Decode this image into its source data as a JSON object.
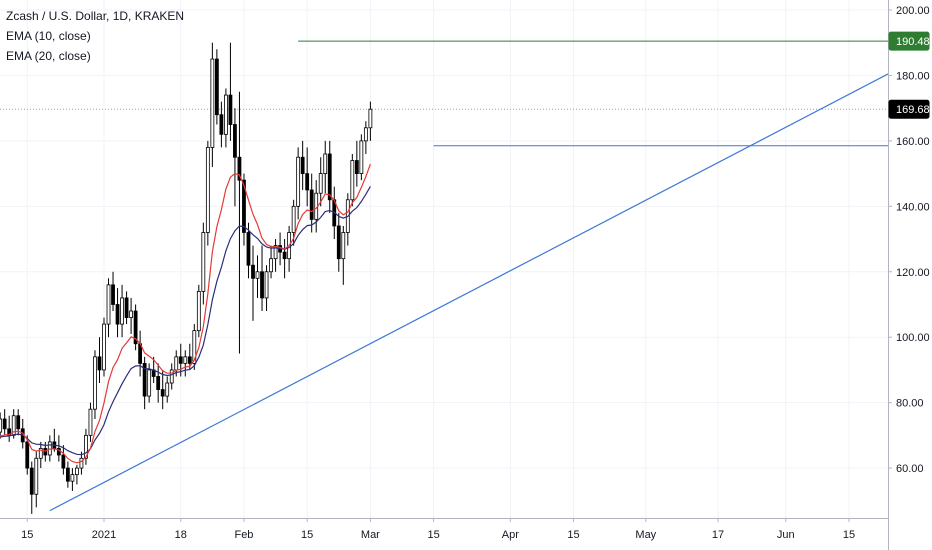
{
  "legend": {
    "title": "Zcash / U.S. Dollar, 1D, KRAKEN",
    "ema10": "EMA (10, close)",
    "ema20": "EMA (20, close)"
  },
  "colors": {
    "up": "#ffffff",
    "down": "#000000",
    "wick": "#000000",
    "ema10": "#e53935",
    "ema20": "#2b2f7a",
    "trendline": "#3c78d8",
    "resistance": "#2e7d32",
    "price_line": "#9e9e9e",
    "grid": "#f0f3fa",
    "axis_text": "#131722"
  },
  "badges": {
    "resistance": {
      "text": "190.48",
      "value": 190.48
    },
    "last_price": {
      "text": "169.68",
      "value": 169.68
    }
  },
  "chart_data": {
    "type": "candlestick",
    "ylim": [
      42,
      205
    ],
    "y_ticks": [
      "200.00",
      "180.00",
      "160.00",
      "140.00",
      "120.00",
      "100.00",
      "80.00",
      "60.00"
    ],
    "y_tick_values": [
      200,
      180,
      160,
      140,
      120,
      100,
      80,
      60
    ],
    "x_ticks": [
      {
        "label": "15",
        "day": -17
      },
      {
        "label": "2021",
        "day": 0
      },
      {
        "label": "18",
        "day": 17
      },
      {
        "label": "Feb",
        "day": 31
      },
      {
        "label": "15",
        "day": 45
      },
      {
        "label": "Mar",
        "day": 59
      },
      {
        "label": "15",
        "day": 73
      },
      {
        "label": "Apr",
        "day": 90
      },
      {
        "label": "15",
        "day": 104
      },
      {
        "label": "May",
        "day": 120
      },
      {
        "label": "17",
        "day": 136
      },
      {
        "label": "Jun",
        "day": 151
      },
      {
        "label": "15",
        "day": 165
      }
    ],
    "candles": [
      [
        69,
        70,
        62,
        64
      ],
      [
        64,
        68,
        61,
        66
      ],
      [
        66,
        70,
        64,
        67
      ],
      [
        67,
        72,
        65,
        70
      ],
      [
        70,
        73,
        66,
        68
      ],
      [
        68,
        71,
        65,
        69
      ],
      [
        69,
        72,
        67,
        71
      ],
      [
        71,
        77,
        69,
        75
      ],
      [
        75,
        78,
        70,
        72
      ],
      [
        72,
        76,
        68,
        70
      ],
      [
        70,
        78,
        69,
        76
      ],
      [
        76,
        78,
        70,
        72
      ],
      [
        72,
        75,
        66,
        68
      ],
      [
        68,
        70,
        58,
        60
      ],
      [
        60,
        62,
        46,
        52
      ],
      [
        52,
        65,
        48,
        63
      ],
      [
        63,
        68,
        60,
        66
      ],
      [
        66,
        68,
        62,
        64
      ],
      [
        64,
        70,
        62,
        68
      ],
      [
        68,
        72,
        65,
        66
      ],
      [
        66,
        70,
        62,
        64
      ],
      [
        64,
        67,
        58,
        60
      ],
      [
        60,
        62,
        54,
        56
      ],
      [
        56,
        60,
        53,
        58
      ],
      [
        58,
        61,
        55,
        60
      ],
      [
        60,
        65,
        58,
        63
      ],
      [
        63,
        72,
        61,
        70
      ],
      [
        70,
        80,
        68,
        78
      ],
      [
        78,
        96,
        75,
        94
      ],
      [
        94,
        100,
        86,
        90
      ],
      [
        90,
        106,
        88,
        104
      ],
      [
        104,
        118,
        100,
        116
      ],
      [
        116,
        120,
        108,
        110
      ],
      [
        110,
        115,
        100,
        104
      ],
      [
        104,
        116,
        100,
        112
      ],
      [
        112,
        114,
        104,
        106
      ],
      [
        106,
        112,
        101,
        108
      ],
      [
        108,
        110,
        96,
        98
      ],
      [
        98,
        102,
        88,
        92
      ],
      [
        92,
        94,
        78,
        82
      ],
      [
        82,
        92,
        80,
        90
      ],
      [
        90,
        94,
        86,
        88
      ],
      [
        88,
        92,
        80,
        84
      ],
      [
        84,
        90,
        78,
        82
      ],
      [
        82,
        88,
        80,
        86
      ],
      [
        86,
        92,
        84,
        90
      ],
      [
        90,
        96,
        88,
        94
      ],
      [
        94,
        98,
        88,
        92
      ],
      [
        92,
        96,
        88,
        94
      ],
      [
        94,
        98,
        90,
        92
      ],
      [
        92,
        104,
        90,
        102
      ],
      [
        102,
        116,
        100,
        114
      ],
      [
        114,
        135,
        110,
        132
      ],
      [
        132,
        160,
        128,
        158
      ],
      [
        158,
        190,
        152,
        185
      ],
      [
        185,
        188,
        165,
        168
      ],
      [
        168,
        172,
        158,
        162
      ],
      [
        162,
        176,
        158,
        174
      ],
      [
        174,
        190,
        160,
        165
      ],
      [
        165,
        170,
        140,
        155
      ],
      [
        155,
        175,
        95,
        148
      ],
      [
        148,
        150,
        128,
        132
      ],
      [
        132,
        135,
        118,
        122
      ],
      [
        122,
        128,
        105,
        118
      ],
      [
        118,
        125,
        112,
        120
      ],
      [
        120,
        128,
        108,
        112
      ],
      [
        112,
        122,
        108,
        120
      ],
      [
        120,
        128,
        118,
        124
      ],
      [
        124,
        130,
        120,
        128
      ],
      [
        128,
        132,
        122,
        126
      ],
      [
        126,
        130,
        118,
        124
      ],
      [
        124,
        134,
        120,
        132
      ],
      [
        132,
        142,
        128,
        140
      ],
      [
        140,
        158,
        136,
        155
      ],
      [
        155,
        160,
        145,
        150
      ],
      [
        150,
        158,
        140,
        145
      ],
      [
        145,
        150,
        132,
        136
      ],
      [
        136,
        148,
        132,
        144
      ],
      [
        144,
        155,
        140,
        150
      ],
      [
        150,
        160,
        144,
        156
      ],
      [
        156,
        160,
        138,
        142
      ],
      [
        142,
        146,
        130,
        134
      ],
      [
        134,
        138,
        120,
        124
      ],
      [
        124,
        134,
        116,
        132
      ],
      [
        132,
        144,
        128,
        142
      ],
      [
        142,
        156,
        140,
        154
      ],
      [
        154,
        160,
        146,
        150
      ],
      [
        150,
        162,
        148,
        160
      ],
      [
        160,
        166,
        156,
        164
      ],
      [
        164,
        172,
        160,
        169.68
      ]
    ],
    "ema10": [
      68,
      67.6,
      67.5,
      67.9,
      67.9,
      68.1,
      68.6,
      69.7,
      70.2,
      70.2,
      71.1,
      71.3,
      70.7,
      68.7,
      65.7,
      65.2,
      65.5,
      65.2,
      65.8,
      65.9,
      65.5,
      64.5,
      62.9,
      62,
      61.6,
      62,
      63.4,
      66.1,
      71.2,
      74.6,
      79.9,
      86.4,
      90.7,
      93.1,
      96.6,
      98.3,
      100.1,
      99.5,
      98.1,
      95.2,
      94.2,
      93.1,
      91.4,
      89.7,
      89,
      89,
      89.9,
      90.2,
      90.9,
      91.1,
      93,
      96.8,
      103.2,
      113.2,
      126.2,
      133.8,
      139.0,
      145.3,
      148.9,
      150,
      149.6,
      146.4,
      141.9,
      137.6,
      134.4,
      130.3,
      128.4,
      127.6,
      127.7,
      127.4,
      127,
      128,
      130.2,
      134.7,
      137.5,
      138.9,
      138.4,
      139.4,
      141.3,
      143.8,
      143.5,
      141.8,
      138.6,
      137.4,
      138.2,
      141.1,
      142.7,
      145.8,
      149.1,
      152.9
    ],
    "ema20": [
      69,
      68.7,
      68.5,
      68.6,
      68.6,
      68.6,
      68.9,
      69.5,
      69.7,
      69.8,
      70.2,
      70.4,
      70.1,
      69.1,
      67.7,
      67.3,
      67.2,
      66.9,
      67.1,
      67,
      66.8,
      66.2,
      65.3,
      64.7,
      64.2,
      64.1,
      64.6,
      65.9,
      68.6,
      70.6,
      73.3,
      77.2,
      80.3,
      83,
      85.8,
      88.2,
      90.4,
      91.2,
      91.3,
      90.4,
      90.3,
      89.9,
      89.3,
      88.6,
      88.3,
      88.5,
      89.2,
      89.5,
      89.9,
      90.1,
      91.3,
      93.9,
      97.6,
      103.8,
      111.5,
      117.1,
      121.4,
      126.4,
      130.1,
      132.5,
      134.0,
      133.8,
      132.7,
      131.3,
      130.2,
      128.5,
      127.6,
      127.2,
      127.3,
      127.1,
      126.9,
      127.4,
      128.6,
      131.1,
      132.9,
      134.1,
      134.3,
      135.2,
      136.6,
      138.4,
      138.7,
      138.2,
      136.9,
      136.4,
      136.9,
      138.5,
      139.6,
      141.5,
      143.7,
      146.1
    ],
    "trendline": {
      "start": {
        "day": -12,
        "price": 47
      },
      "end": {
        "day": 180,
        "price": 185
      }
    },
    "horizontal_lines": [
      {
        "name": "resistance",
        "price": 190.48,
        "from_day": 43
      },
      {
        "name": "range-top",
        "price": 158.5,
        "from_day": 73
      },
      {
        "name": "last-price",
        "price": 169.68,
        "from_day": -30,
        "dashed": true
      }
    ]
  }
}
